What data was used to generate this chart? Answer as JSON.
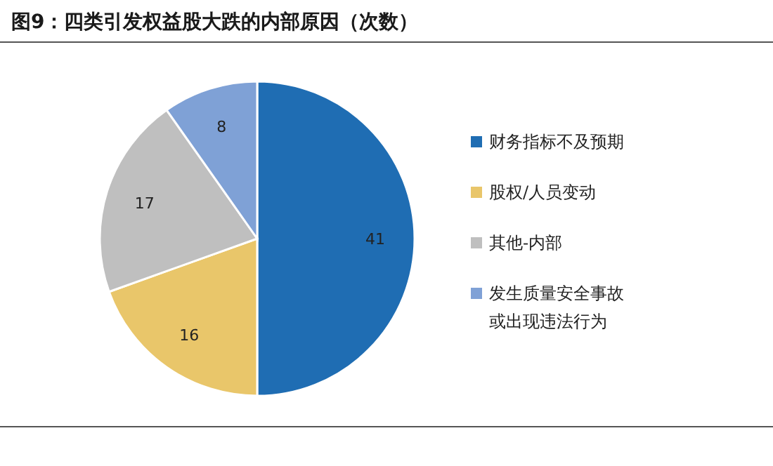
{
  "chart_data": {
    "type": "pie",
    "title": "图9：四类引发权益股大跌的内部原因（次数）",
    "categories": [
      "财务指标不及预期",
      "股权/人员变动",
      "其他-内部",
      "发生质量安全事故或出现违法行为"
    ],
    "values": [
      41,
      16,
      17,
      8
    ],
    "colors": [
      "#1f6db3",
      "#e9c66a",
      "#bfbfbf",
      "#7fa1d6"
    ],
    "data_labels": true,
    "legend": "right"
  }
}
